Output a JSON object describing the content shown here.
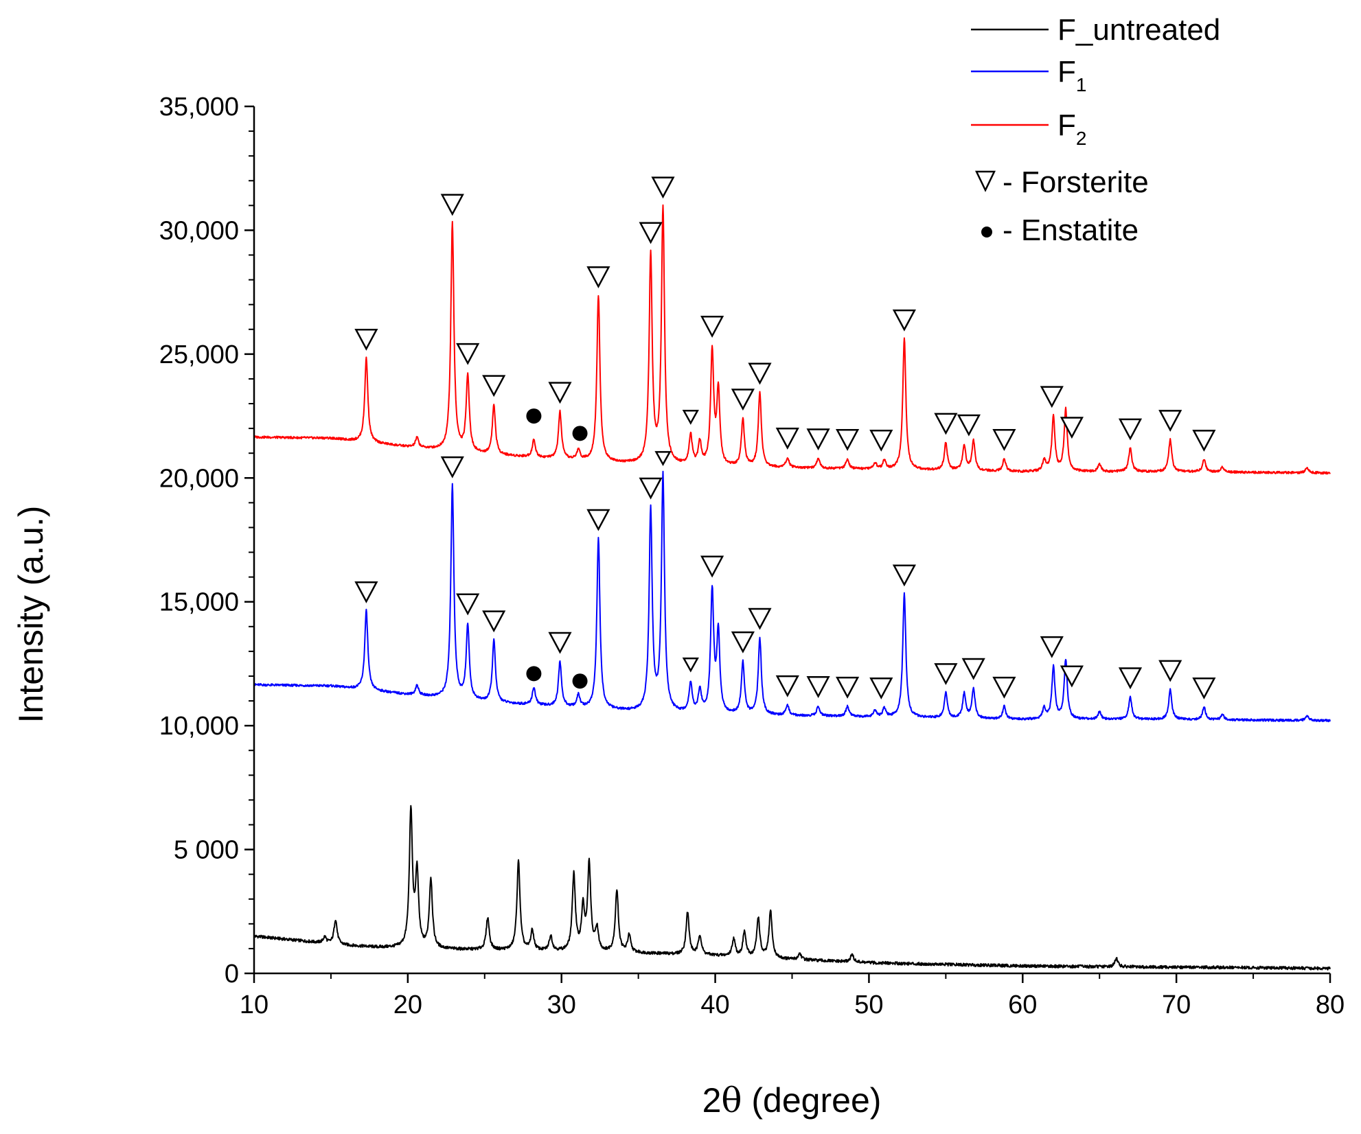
{
  "chart_data": {
    "type": "line",
    "xlabel_prefix": "2",
    "xlabel_theta": "θ",
    "xlabel_suffix": " (degree)",
    "ylabel": "Intensity (a.u.)",
    "xlim": [
      10,
      80
    ],
    "ylim": [
      0,
      35000
    ],
    "x_ticks": [
      10,
      20,
      30,
      40,
      50,
      60,
      70,
      80
    ],
    "x_tick_labels": [
      "10",
      "20",
      "30",
      "40",
      "50",
      "60",
      "70",
      "80"
    ],
    "y_ticks": [
      0,
      5000,
      10000,
      15000,
      20000,
      25000,
      30000,
      35000
    ],
    "y_tick_labels": [
      "0",
      "5 000",
      "10,000",
      "15,000",
      "20,000",
      "25,000",
      "30,000",
      "35,000"
    ],
    "legend": {
      "position": "top-right",
      "entries": [
        {
          "name": "F_untreated",
          "base": "F_untreated",
          "sub": "",
          "color": "#000000"
        },
        {
          "name": "F1",
          "base": "F",
          "sub": "1",
          "color": "#0000ff"
        },
        {
          "name": "F2",
          "base": "F",
          "sub": "2",
          "color": "#ff0000"
        }
      ],
      "marker_entries": [
        {
          "symbol": "triangle",
          "label": "- Forsterite"
        },
        {
          "symbol": "dot",
          "label": "- Enstatite"
        }
      ]
    },
    "series": [
      {
        "name": "F_untreated",
        "color": "#000000",
        "baseline": [
          [
            10,
            1500
          ],
          [
            12,
            1380
          ],
          [
            16,
            1130
          ],
          [
            18,
            1050
          ],
          [
            22,
            980
          ],
          [
            26,
            930
          ],
          [
            30,
            880
          ],
          [
            35,
            820
          ],
          [
            40,
            720
          ],
          [
            45,
            560
          ],
          [
            50,
            430
          ],
          [
            55,
            360
          ],
          [
            60,
            300
          ],
          [
            65,
            270
          ],
          [
            70,
            250
          ],
          [
            75,
            230
          ],
          [
            80,
            200
          ]
        ],
        "peaks": [
          [
            14.6,
            250
          ],
          [
            15.3,
            1000
          ],
          [
            20.2,
            5500
          ],
          [
            20.6,
            3000
          ],
          [
            21.5,
            2800
          ],
          [
            25.2,
            1300
          ],
          [
            27.2,
            3600
          ],
          [
            28.1,
            800
          ],
          [
            29.3,
            600
          ],
          [
            30.8,
            3100
          ],
          [
            31.4,
            1700
          ],
          [
            31.8,
            3500
          ],
          [
            32.3,
            900
          ],
          [
            33.6,
            2500
          ],
          [
            34.4,
            700
          ],
          [
            38.2,
            1700
          ],
          [
            39.0,
            800
          ],
          [
            41.2,
            700
          ],
          [
            41.9,
            1000
          ],
          [
            42.8,
            1600
          ],
          [
            43.6,
            1900
          ],
          [
            45.5,
            250
          ],
          [
            48.9,
            300
          ],
          [
            66.1,
            350
          ]
        ]
      },
      {
        "name": "F1",
        "color": "#0000ff",
        "baseline": [
          [
            10,
            11650
          ],
          [
            15,
            11600
          ],
          [
            20,
            11250
          ],
          [
            25,
            10950
          ],
          [
            30,
            10750
          ],
          [
            35,
            10550
          ],
          [
            40,
            10450
          ],
          [
            45,
            10400
          ],
          [
            50,
            10350
          ],
          [
            55,
            10300
          ],
          [
            60,
            10250
          ],
          [
            70,
            10250
          ],
          [
            80,
            10200
          ]
        ],
        "peaks": [
          [
            17.3,
            3200
          ],
          [
            20.6,
            400
          ],
          [
            22.9,
            8600
          ],
          [
            23.9,
            3000
          ],
          [
            25.6,
            2500
          ],
          [
            28.2,
            700
          ],
          [
            29.9,
            1800
          ],
          [
            31.1,
            500
          ],
          [
            32.4,
            6900
          ],
          [
            35.8,
            8100
          ],
          [
            36.6,
            9500
          ],
          [
            38.4,
            1200
          ],
          [
            39.0,
            900
          ],
          [
            39.8,
            4900
          ],
          [
            40.2,
            3200
          ],
          [
            41.8,
            2100
          ],
          [
            42.9,
            3100
          ],
          [
            44.7,
            400
          ],
          [
            46.7,
            400
          ],
          [
            48.6,
            400
          ],
          [
            50.4,
            250
          ],
          [
            51.0,
            350
          ],
          [
            52.3,
            5000
          ],
          [
            55.0,
            1000
          ],
          [
            56.2,
            1000
          ],
          [
            56.8,
            1200
          ],
          [
            58.8,
            500
          ],
          [
            61.4,
            450
          ],
          [
            62.0,
            2100
          ],
          [
            62.8,
            2400
          ],
          [
            65.0,
            300
          ],
          [
            67.0,
            900
          ],
          [
            69.6,
            1200
          ],
          [
            71.8,
            500
          ],
          [
            73.0,
            200
          ],
          [
            78.5,
            200
          ]
        ]
      },
      {
        "name": "F2",
        "color": "#ff0000",
        "baseline": [
          [
            10,
            21650
          ],
          [
            15,
            21600
          ],
          [
            20,
            21250
          ],
          [
            25,
            20950
          ],
          [
            30,
            20750
          ],
          [
            35,
            20550
          ],
          [
            40,
            20450
          ],
          [
            45,
            20400
          ],
          [
            50,
            20350
          ],
          [
            55,
            20300
          ],
          [
            60,
            20250
          ],
          [
            70,
            20250
          ],
          [
            80,
            20200
          ]
        ],
        "peaks": [
          [
            17.3,
            3400
          ],
          [
            20.6,
            400
          ],
          [
            22.9,
            9200
          ],
          [
            23.9,
            3100
          ],
          [
            25.6,
            2000
          ],
          [
            28.2,
            700
          ],
          [
            29.9,
            1900
          ],
          [
            31.1,
            400
          ],
          [
            32.4,
            6700
          ],
          [
            35.8,
            8400
          ],
          [
            36.6,
            10300
          ],
          [
            38.4,
            1200
          ],
          [
            39.0,
            900
          ],
          [
            39.8,
            4600
          ],
          [
            40.2,
            3000
          ],
          [
            41.8,
            1900
          ],
          [
            42.9,
            3000
          ],
          [
            44.7,
            400
          ],
          [
            46.7,
            400
          ],
          [
            48.6,
            400
          ],
          [
            50.4,
            250
          ],
          [
            51.0,
            350
          ],
          [
            52.3,
            5300
          ],
          [
            55.0,
            1100
          ],
          [
            56.2,
            1000
          ],
          [
            56.8,
            1200
          ],
          [
            58.8,
            500
          ],
          [
            61.4,
            450
          ],
          [
            62.0,
            2200
          ],
          [
            62.8,
            2500
          ],
          [
            65.0,
            300
          ],
          [
            67.0,
            950
          ],
          [
            69.6,
            1300
          ],
          [
            71.8,
            500
          ],
          [
            73.0,
            200
          ],
          [
            78.5,
            200
          ]
        ]
      }
    ],
    "forsterite_markers": [
      {
        "series": "F2",
        "x": 17.3
      },
      {
        "series": "F2",
        "x": 22.9
      },
      {
        "series": "F2",
        "x": 23.9
      },
      {
        "series": "F2",
        "x": 25.6
      },
      {
        "series": "F2",
        "x": 29.9
      },
      {
        "series": "F2",
        "x": 32.4
      },
      {
        "series": "F2",
        "x": 35.8
      },
      {
        "series": "F2",
        "x": 36.6
      },
      {
        "series": "F2",
        "x": 38.4,
        "small": true
      },
      {
        "series": "F2",
        "x": 39.8
      },
      {
        "series": "F2",
        "x": 41.8
      },
      {
        "series": "F2",
        "x": 42.9
      },
      {
        "series": "F2",
        "x": 44.7
      },
      {
        "series": "F2",
        "x": 46.7
      },
      {
        "series": "F2",
        "x": 48.6
      },
      {
        "series": "F2",
        "x": 50.8
      },
      {
        "series": "F2",
        "x": 52.3
      },
      {
        "series": "F2",
        "x": 55.0
      },
      {
        "series": "F2",
        "x": 56.5
      },
      {
        "series": "F2",
        "x": 58.8
      },
      {
        "series": "F2",
        "x": 61.9
      },
      {
        "series": "F2",
        "x": 63.2
      },
      {
        "series": "F2",
        "x": 67.0
      },
      {
        "series": "F2",
        "x": 69.6
      },
      {
        "series": "F2",
        "x": 71.8
      },
      {
        "series": "F1",
        "x": 17.3
      },
      {
        "series": "F1",
        "x": 22.9
      },
      {
        "series": "F1",
        "x": 23.9
      },
      {
        "series": "F1",
        "x": 25.6
      },
      {
        "series": "F1",
        "x": 29.9
      },
      {
        "series": "F1",
        "x": 32.4
      },
      {
        "series": "F1",
        "x": 35.8
      },
      {
        "series": "F1",
        "x": 36.6,
        "small": true
      },
      {
        "series": "F1",
        "x": 38.4,
        "small": true
      },
      {
        "series": "F1",
        "x": 39.8
      },
      {
        "series": "F1",
        "x": 41.8
      },
      {
        "series": "F1",
        "x": 42.9
      },
      {
        "series": "F1",
        "x": 44.7
      },
      {
        "series": "F1",
        "x": 46.7
      },
      {
        "series": "F1",
        "x": 48.6
      },
      {
        "series": "F1",
        "x": 50.8
      },
      {
        "series": "F1",
        "x": 52.3
      },
      {
        "series": "F1",
        "x": 55.0
      },
      {
        "series": "F1",
        "x": 56.8
      },
      {
        "series": "F1",
        "x": 58.8
      },
      {
        "series": "F1",
        "x": 61.9
      },
      {
        "series": "F1",
        "x": 63.2
      },
      {
        "series": "F1",
        "x": 67.0
      },
      {
        "series": "F1",
        "x": 69.6
      },
      {
        "series": "F1",
        "x": 71.8
      }
    ],
    "enstatite_markers": [
      {
        "series": "F2",
        "x": 28.2,
        "y": 22500
      },
      {
        "series": "F2",
        "x": 31.2,
        "y": 21800
      },
      {
        "series": "F1",
        "x": 28.2,
        "y": 12100
      },
      {
        "series": "F1",
        "x": 31.2,
        "y": 11800
      }
    ]
  }
}
